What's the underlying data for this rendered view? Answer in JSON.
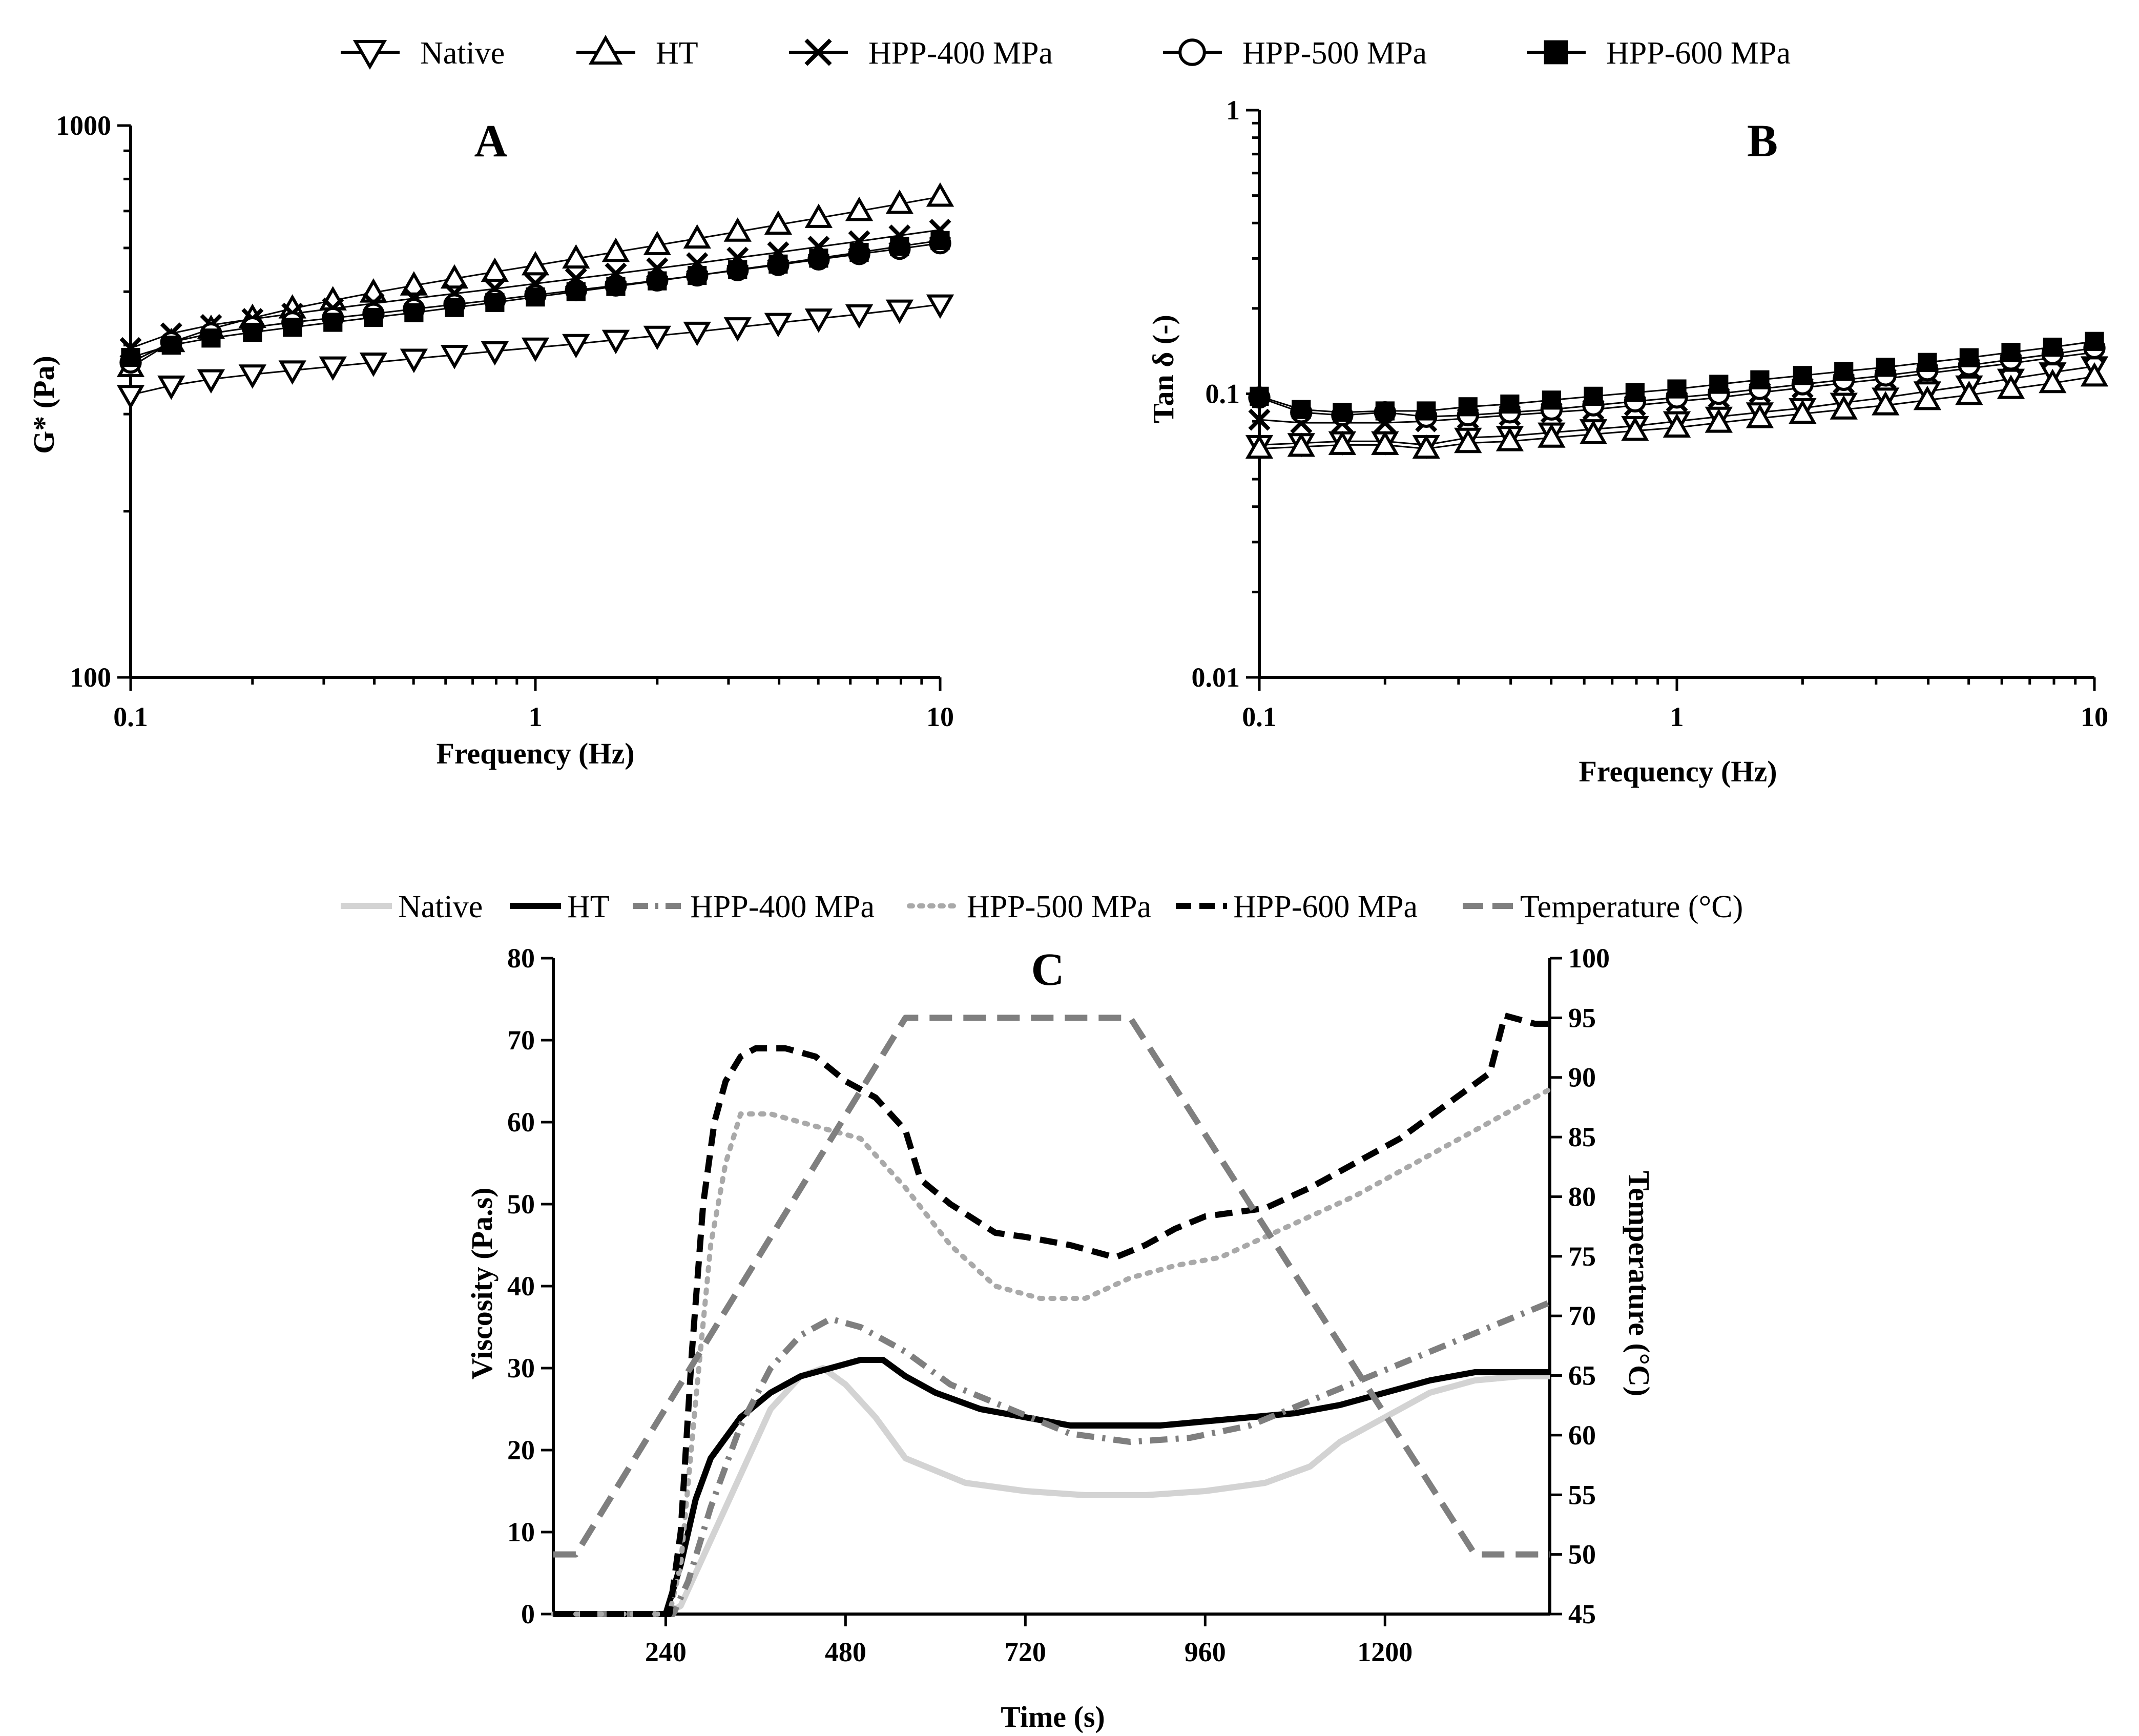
{
  "legend_top": [
    {
      "name": "Native",
      "marker": "tri-down"
    },
    {
      "name": "HT",
      "marker": "tri-up"
    },
    {
      "name": "HPP-400 MPa",
      "marker": "cross"
    },
    {
      "name": "HPP-500 MPa",
      "marker": "circle"
    },
    {
      "name": "HPP-600 MPa",
      "marker": "square"
    }
  ],
  "legend_c": [
    {
      "name": "Native",
      "color": "#d3d3d3",
      "dash": "solid"
    },
    {
      "name": "HT",
      "color": "#000000",
      "dash": "solid"
    },
    {
      "name": "HPP-400 MPa",
      "color": "#7f7f7f",
      "dash": "dashdot"
    },
    {
      "name": "HPP-500 MPa",
      "color": "#a9a9a9",
      "dash": "dot"
    },
    {
      "name": "HPP-600 MPa",
      "color": "#000000",
      "dash": "dash"
    },
    {
      "name": "Temperature (°C)",
      "color": "#7f7f7f",
      "dash": "longdash"
    }
  ],
  "chart_data": [
    {
      "id": "A",
      "type": "line",
      "title": "A",
      "xlabel": "Frequency (Hz)",
      "ylabel": "G* (Pa)",
      "xscale": "log",
      "yscale": "log",
      "xlim": [
        0.1,
        10
      ],
      "ylim": [
        100,
        1000
      ],
      "xticks": [
        "0.1",
        "1",
        "10"
      ],
      "yticks": [
        "100",
        "1000"
      ],
      "x": [
        0.1,
        0.126,
        0.158,
        0.2,
        0.251,
        0.316,
        0.398,
        0.501,
        0.631,
        0.794,
        1.0,
        1.26,
        1.58,
        2.0,
        2.51,
        3.16,
        3.98,
        5.01,
        6.31,
        7.94,
        10.0
      ],
      "series": [
        {
          "name": "Native",
          "marker": "tri-down",
          "values": [
            325,
            338,
            347,
            354,
            360,
            366,
            372,
            378,
            384,
            390,
            396,
            402,
            409,
            416,
            423,
            431,
            439,
            447,
            455,
            464,
            474
          ]
        },
        {
          "name": "HT",
          "marker": "tri-up",
          "values": [
            365,
            405,
            428,
            448,
            466,
            482,
            498,
            513,
            528,
            543,
            558,
            574,
            590,
            607,
            624,
            642,
            661,
            680,
            700,
            721,
            743
          ]
        },
        {
          "name": "HPP-400 MPa",
          "marker": "cross",
          "values": [
            395,
            420,
            435,
            446,
            456,
            466,
            476,
            486,
            496,
            506,
            517,
            528,
            539,
            551,
            563,
            576,
            589,
            603,
            617,
            632,
            647
          ]
        },
        {
          "name": "HPP-500 MPa",
          "marker": "circle",
          "values": [
            372,
            405,
            420,
            431,
            440,
            448,
            456,
            465,
            474,
            483,
            493,
            503,
            513,
            524,
            535,
            547,
            559,
            572,
            585,
            598,
            612
          ]
        },
        {
          "name": "HPP-600 MPa",
          "marker": "square",
          "values": [
            380,
            400,
            412,
            422,
            431,
            440,
            449,
            458,
            468,
            478,
            489,
            500,
            511,
            523,
            535,
            548,
            561,
            575,
            589,
            604,
            619
          ]
        }
      ]
    },
    {
      "id": "B",
      "type": "line",
      "title": "B",
      "xlabel": "Frequency (Hz)",
      "ylabel": "Tan δ (-)",
      "xscale": "log",
      "yscale": "log",
      "xlim": [
        0.1,
        10
      ],
      "ylim": [
        0.01,
        1
      ],
      "xticks": [
        "0.1",
        "1",
        "10"
      ],
      "yticks": [
        "0.01",
        "0.1",
        "1"
      ],
      "x": [
        0.1,
        0.126,
        0.158,
        0.2,
        0.251,
        0.316,
        0.398,
        0.501,
        0.631,
        0.794,
        1.0,
        1.26,
        1.58,
        2.0,
        2.51,
        3.16,
        3.98,
        5.01,
        6.31,
        7.94,
        10.0
      ],
      "series": [
        {
          "name": "Native",
          "marker": "tri-down",
          "values": [
            0.066,
            0.067,
            0.068,
            0.068,
            0.066,
            0.07,
            0.071,
            0.073,
            0.075,
            0.077,
            0.08,
            0.083,
            0.086,
            0.089,
            0.093,
            0.097,
            0.102,
            0.107,
            0.113,
            0.119,
            0.125
          ]
        },
        {
          "name": "HT",
          "marker": "tri-up",
          "values": [
            0.064,
            0.065,
            0.066,
            0.066,
            0.064,
            0.067,
            0.068,
            0.07,
            0.072,
            0.074,
            0.076,
            0.079,
            0.082,
            0.085,
            0.088,
            0.091,
            0.095,
            0.099,
            0.104,
            0.109,
            0.115
          ]
        },
        {
          "name": "HPP-400 MPa",
          "marker": "cross",
          "values": [
            0.081,
            0.079,
            0.079,
            0.079,
            0.08,
            0.082,
            0.084,
            0.086,
            0.088,
            0.091,
            0.094,
            0.097,
            0.101,
            0.105,
            0.109,
            0.113,
            0.118,
            0.123,
            0.128,
            0.134,
            0.14
          ]
        },
        {
          "name": "HPP-500 MPa",
          "marker": "circle",
          "values": [
            0.097,
            0.086,
            0.084,
            0.086,
            0.083,
            0.084,
            0.086,
            0.088,
            0.091,
            0.094,
            0.097,
            0.1,
            0.104,
            0.108,
            0.112,
            0.116,
            0.121,
            0.126,
            0.132,
            0.138,
            0.145
          ]
        },
        {
          "name": "HPP-600 MPa",
          "marker": "square",
          "values": [
            0.098,
            0.088,
            0.086,
            0.087,
            0.087,
            0.09,
            0.092,
            0.095,
            0.098,
            0.101,
            0.104,
            0.108,
            0.112,
            0.116,
            0.12,
            0.124,
            0.129,
            0.134,
            0.14,
            0.146,
            0.153
          ]
        }
      ]
    },
    {
      "id": "C",
      "type": "line",
      "title": "C",
      "xlabel": "Time (s)",
      "ylabel": "Viscosity (Pa.s)",
      "y2label": "Temperature (°C)",
      "xlim": [
        90,
        1420
      ],
      "ylim": [
        0,
        80
      ],
      "y2lim": [
        45,
        100
      ],
      "xticks": [
        240,
        480,
        720,
        960,
        1200
      ],
      "yticks": [
        0,
        10,
        20,
        30,
        40,
        50,
        60,
        70,
        80
      ],
      "y2ticks": [
        45,
        50,
        55,
        60,
        65,
        70,
        75,
        80,
        85,
        90,
        95,
        100
      ],
      "series": [
        {
          "name": "Native",
          "x": [
            90,
            240,
            260,
            300,
            340,
            380,
            420,
            450,
            480,
            520,
            560,
            640,
            720,
            800,
            880,
            960,
            1040,
            1100,
            1140,
            1200,
            1260,
            1320,
            1380,
            1420
          ],
          "values": [
            0,
            0,
            1,
            9,
            17,
            25,
            29,
            30,
            28,
            24,
            19,
            16,
            15,
            14.5,
            14.5,
            15,
            16,
            18,
            21,
            24,
            27,
            28.5,
            29,
            29
          ]
        },
        {
          "name": "HT",
          "x": [
            90,
            240,
            260,
            280,
            300,
            340,
            380,
            420,
            460,
            500,
            530,
            560,
            600,
            660,
            720,
            780,
            840,
            900,
            960,
            1020,
            1080,
            1140,
            1200,
            1260,
            1320,
            1380,
            1420
          ],
          "values": [
            0,
            0,
            6,
            14,
            19,
            24,
            27,
            29,
            30,
            31,
            31,
            29,
            27,
            25,
            24,
            23,
            23,
            23,
            23.5,
            24,
            24.5,
            25.5,
            27,
            28.5,
            29.5,
            29.5,
            29.5
          ]
        },
        {
          "name": "HPP-400 MPa",
          "x": [
            90,
            250,
            270,
            300,
            340,
            380,
            420,
            460,
            500,
            560,
            620,
            700,
            780,
            860,
            940,
            1020,
            1100,
            1180,
            1260,
            1340,
            1420
          ],
          "values": [
            0,
            0,
            4,
            13,
            23,
            30,
            34,
            36,
            35,
            32,
            28,
            25,
            22,
            21,
            21.5,
            23,
            26,
            29,
            32,
            35,
            38
          ]
        },
        {
          "name": "HPP-500 MPa",
          "x": [
            90,
            245,
            260,
            280,
            300,
            320,
            340,
            380,
            420,
            460,
            500,
            560,
            620,
            680,
            740,
            800,
            860,
            920,
            980,
            1040,
            1100,
            1160,
            1220,
            1280,
            1340,
            1420
          ],
          "values": [
            0,
            0,
            6,
            26,
            45,
            55,
            61,
            61,
            60,
            59,
            58,
            52,
            45,
            40,
            38.5,
            38.5,
            41,
            42.5,
            43.5,
            46,
            48.5,
            51,
            54,
            57,
            60,
            64
          ]
        },
        {
          "name": "HPP-600 MPa",
          "x": [
            90,
            245,
            260,
            275,
            290,
            305,
            320,
            340,
            360,
            400,
            440,
            480,
            520,
            560,
            580,
            620,
            680,
            720,
            780,
            840,
            880,
            920,
            960,
            1040,
            1100,
            1160,
            1220,
            1280,
            1340,
            1360,
            1400,
            1420
          ],
          "values": [
            0,
            0,
            10,
            32,
            50,
            60,
            65,
            68,
            69,
            69,
            68,
            65,
            63,
            59,
            53,
            50,
            46.5,
            46,
            45,
            43.5,
            45,
            47,
            48.5,
            49.5,
            52,
            55,
            58,
            62,
            66,
            73,
            72,
            72
          ]
        },
        {
          "name": "Temperature (°C)",
          "axis": "y2",
          "x": [
            90,
            120,
            560,
            860,
            1320,
            1420
          ],
          "values": [
            50,
            50,
            95,
            95,
            50,
            50
          ]
        }
      ]
    }
  ]
}
